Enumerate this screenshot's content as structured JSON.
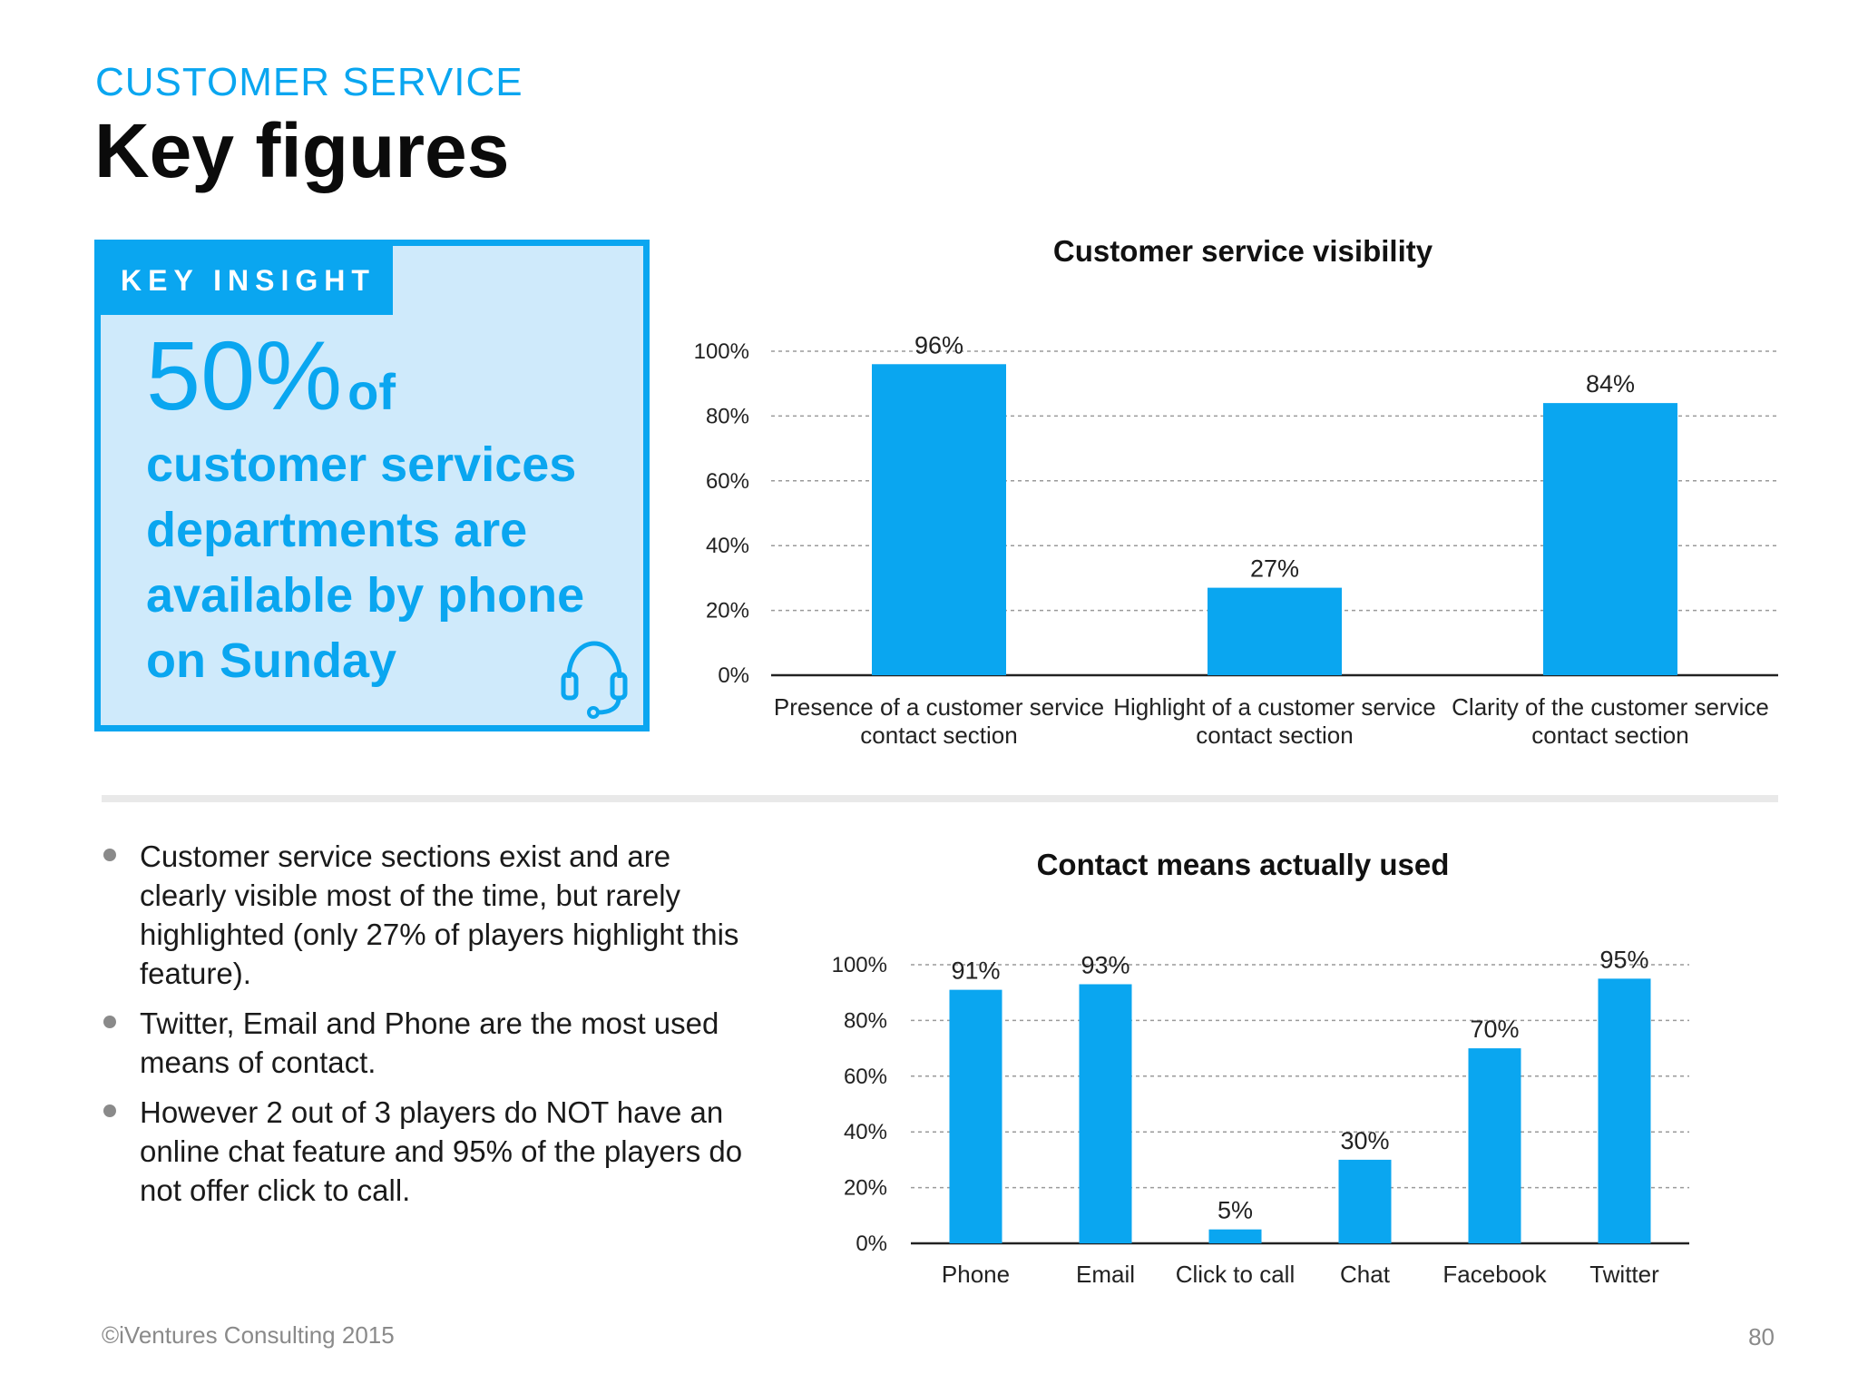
{
  "header": {
    "eyebrow": "CUSTOMER SERVICE",
    "title": "Key figures"
  },
  "insight": {
    "tab_label": "KEY INSIGHT",
    "percent": "50%",
    "of_word": "of",
    "text": "customer services departments are available by phone on Sunday",
    "icon": "headset-icon"
  },
  "bullets": [
    "Customer service sections exist and are clearly visible most of the time, but rarely highlighted (only 27% of players highlight this feature).",
    "Twitter, Email and Phone are the most used means of contact.",
    "However 2 out of 3 players do NOT have an online chat feature and 95% of the players do not offer click to call."
  ],
  "footer": {
    "copyright": "©iVentures Consulting 2015",
    "page_number": "80"
  },
  "colors": {
    "accent": "#0aa6f0",
    "insight_bg": "#cfeafb",
    "grid": "#9a9a9a"
  },
  "chart_data": [
    {
      "type": "bar",
      "title": "Customer service visibility",
      "categories": [
        [
          "Presence of a customer service",
          "contact section"
        ],
        [
          "Highlight of a customer service",
          "contact section"
        ],
        [
          "Clarity of the customer service",
          "contact section"
        ]
      ],
      "values": [
        96,
        27,
        84
      ],
      "value_labels": [
        "96%",
        "27%",
        "84%"
      ],
      "yticks": [
        "0%",
        "20%",
        "40%",
        "60%",
        "80%",
        "100%"
      ],
      "ylim": [
        0,
        100
      ],
      "grid": true
    },
    {
      "type": "bar",
      "title": "Contact means actually used",
      "categories": [
        "Phone",
        "Email",
        "Click to call",
        "Chat",
        "Facebook",
        "Twitter"
      ],
      "values": [
        91,
        93,
        5,
        30,
        70,
        95
      ],
      "value_labels": [
        "91%",
        "93%",
        "5%",
        "30%",
        "70%",
        "95%"
      ],
      "yticks": [
        "0%",
        "20%",
        "40%",
        "60%",
        "80%",
        "100%"
      ],
      "ylim": [
        0,
        100
      ],
      "grid": true
    }
  ]
}
